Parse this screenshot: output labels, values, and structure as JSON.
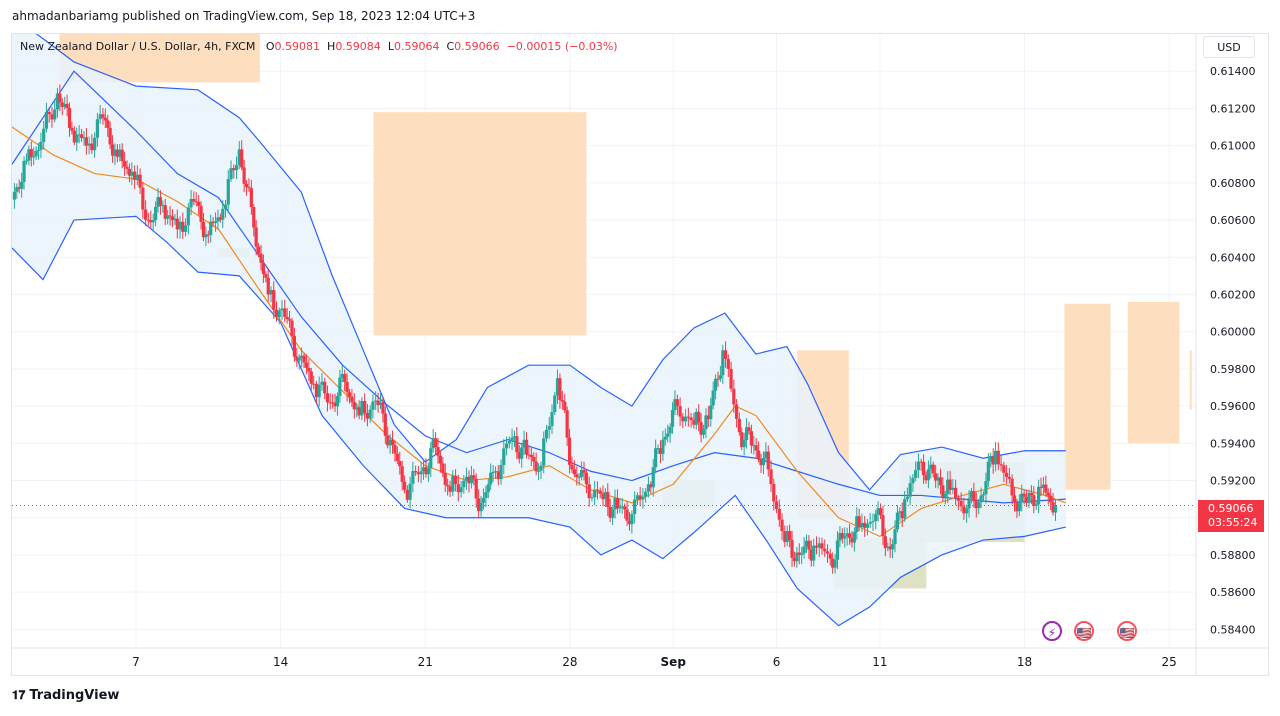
{
  "publisher_line": "ahmadanbariamg published on TradingView.com, Sep 18, 2023 12:04 UTC+3",
  "legend": {
    "symbol": "New Zealand Dollar / U.S. Dollar, 4h, FXCM",
    "open_label": "O",
    "open": "0.59081",
    "high_label": "H",
    "high": "0.59084",
    "low_label": "L",
    "low": "0.59064",
    "close_label": "C",
    "close": "0.59066",
    "change": "−0.00015 (−0.03%)"
  },
  "currency_button": "USD",
  "price_tag": {
    "price": "0.59066",
    "countdown": "03:55:24"
  },
  "footer_brand": "TradingView",
  "events": [
    {
      "name": "lightning-event-icon",
      "glyph": "⚡"
    },
    {
      "name": "us-flag-event-icon",
      "glyph": "🇺🇸"
    },
    {
      "name": "us-flag-event-icon",
      "glyph": "🇺🇸"
    }
  ],
  "colors": {
    "up": "#26a69a",
    "down": "#f23645",
    "band": "#2962ff",
    "band_fill": "#e9f2fb",
    "ma": "#f28a1e",
    "zone_supply": "#fdd9b5",
    "zone_demand": "#d9dcb9"
  },
  "chart_data": {
    "type": "candlestick",
    "symbol": "NZDUSD",
    "timeframe": "4h",
    "y_axis_ticks": [
      "0.61400",
      "0.61200",
      "0.61000",
      "0.60800",
      "0.60600",
      "0.60400",
      "0.60200",
      "0.60000",
      "0.59800",
      "0.59600",
      "0.59400",
      "0.59200",
      "0.59000",
      "0.58800",
      "0.58600",
      "0.58400"
    ],
    "ylim": [
      0.583,
      0.616
    ],
    "x_axis_ticks": [
      {
        "label": "7",
        "t": 6
      },
      {
        "label": "14",
        "t": 13
      },
      {
        "label": "21",
        "t": 20
      },
      {
        "label": "28",
        "t": 27
      },
      {
        "label": "Sep",
        "t": 32
      },
      {
        "label": "6",
        "t": 37
      },
      {
        "label": "11",
        "t": 42
      },
      {
        "label": "18",
        "t": 49
      },
      {
        "label": "25",
        "t": 56
      }
    ],
    "xlim": [
      0,
      57.3
    ],
    "last_price": 0.59066,
    "price_path": [
      [
        0,
        0.6071
      ],
      [
        0.7,
        0.6092
      ],
      [
        1.4,
        0.6102
      ],
      [
        2.2,
        0.6128
      ],
      [
        2.9,
        0.6108
      ],
      [
        3.6,
        0.61
      ],
      [
        4.4,
        0.6115
      ],
      [
        5.1,
        0.6094
      ],
      [
        5.8,
        0.6086
      ],
      [
        6.6,
        0.606
      ],
      [
        7.3,
        0.6068
      ],
      [
        8.0,
        0.6055
      ],
      [
        8.8,
        0.607
      ],
      [
        9.5,
        0.6052
      ],
      [
        10.2,
        0.6066
      ],
      [
        11.0,
        0.6098
      ],
      [
        11.7,
        0.6056
      ],
      [
        12.4,
        0.602
      ],
      [
        13.2,
        0.6008
      ],
      [
        13.9,
        0.5986
      ],
      [
        14.6,
        0.5972
      ],
      [
        15.4,
        0.5962
      ],
      [
        16.1,
        0.5973
      ],
      [
        16.8,
        0.5955
      ],
      [
        17.6,
        0.5963
      ],
      [
        18.3,
        0.5942
      ],
      [
        19.0,
        0.5915
      ],
      [
        19.8,
        0.5925
      ],
      [
        20.5,
        0.5938
      ],
      [
        21.2,
        0.5914
      ],
      [
        22.0,
        0.5922
      ],
      [
        22.7,
        0.5908
      ],
      [
        23.4,
        0.5925
      ],
      [
        24.2,
        0.5943
      ],
      [
        24.9,
        0.5934
      ],
      [
        25.6,
        0.5928
      ],
      [
        26.4,
        0.5975
      ],
      [
        27.1,
        0.5926
      ],
      [
        27.8,
        0.5918
      ],
      [
        28.6,
        0.591
      ],
      [
        29.3,
        0.5905
      ],
      [
        30.0,
        0.5902
      ],
      [
        30.8,
        0.5918
      ],
      [
        31.5,
        0.5942
      ],
      [
        32.2,
        0.596
      ],
      [
        33.0,
        0.595
      ],
      [
        33.7,
        0.5953
      ],
      [
        34.4,
        0.599
      ],
      [
        35.2,
        0.5946
      ],
      [
        35.9,
        0.5939
      ],
      [
        36.6,
        0.5926
      ],
      [
        37.4,
        0.5887
      ],
      [
        38.1,
        0.588
      ],
      [
        38.8,
        0.5885
      ],
      [
        39.6,
        0.5878
      ],
      [
        40.3,
        0.589
      ],
      [
        41.0,
        0.5895
      ],
      [
        41.8,
        0.5902
      ],
      [
        42.5,
        0.5883
      ],
      [
        43.2,
        0.591
      ],
      [
        44.0,
        0.593
      ],
      [
        44.7,
        0.592
      ],
      [
        45.4,
        0.5915
      ],
      [
        46.2,
        0.5905
      ],
      [
        46.9,
        0.5912
      ],
      [
        47.6,
        0.5936
      ],
      [
        48.4,
        0.5912
      ],
      [
        49.1,
        0.5908
      ],
      [
        49.8,
        0.5916
      ],
      [
        50.5,
        0.59066
      ]
    ],
    "bollinger": {
      "upper": [
        [
          0,
          0.617
        ],
        [
          3,
          0.6145
        ],
        [
          6,
          0.6132
        ],
        [
          9,
          0.613
        ],
        [
          11,
          0.6115
        ],
        [
          12,
          0.6102
        ],
        [
          14,
          0.6075
        ],
        [
          15.5,
          0.603
        ],
        [
          17,
          0.599
        ],
        [
          18.5,
          0.595
        ],
        [
          20,
          0.593
        ],
        [
          21.5,
          0.5942
        ],
        [
          23,
          0.597
        ],
        [
          25,
          0.5982
        ],
        [
          27,
          0.5982
        ],
        [
          28.5,
          0.597
        ],
        [
          30,
          0.596
        ],
        [
          31.5,
          0.5985
        ],
        [
          33,
          0.6002
        ],
        [
          34.5,
          0.601
        ],
        [
          36,
          0.5988
        ],
        [
          37.5,
          0.5992
        ],
        [
          38.5,
          0.5972
        ],
        [
          40,
          0.5935
        ],
        [
          41.5,
          0.5915
        ],
        [
          43,
          0.5934
        ],
        [
          45,
          0.5938
        ],
        [
          47,
          0.5932
        ],
        [
          49,
          0.5936
        ],
        [
          51,
          0.5936
        ]
      ],
      "middle": [
        [
          0,
          0.609
        ],
        [
          3,
          0.614
        ],
        [
          6,
          0.6108
        ],
        [
          8,
          0.6085
        ],
        [
          10,
          0.6072
        ],
        [
          12,
          0.604
        ],
        [
          14,
          0.6008
        ],
        [
          16,
          0.5982
        ],
        [
          18,
          0.5962
        ],
        [
          20,
          0.5944
        ],
        [
          22,
          0.5935
        ],
        [
          24,
          0.5942
        ],
        [
          26,
          0.5935
        ],
        [
          28,
          0.5925
        ],
        [
          30,
          0.592
        ],
        [
          32,
          0.5928
        ],
        [
          34,
          0.5935
        ],
        [
          36,
          0.5932
        ],
        [
          38,
          0.5925
        ],
        [
          40,
          0.5918
        ],
        [
          42,
          0.5912
        ],
        [
          44,
          0.5912
        ],
        [
          46,
          0.591
        ],
        [
          48,
          0.5908
        ],
        [
          51,
          0.591
        ]
      ],
      "lower": [
        [
          0,
          0.6045
        ],
        [
          1.5,
          0.6028
        ],
        [
          3,
          0.606
        ],
        [
          6,
          0.6062
        ],
        [
          7.5,
          0.6048
        ],
        [
          9,
          0.6032
        ],
        [
          11,
          0.603
        ],
        [
          13,
          0.6005
        ],
        [
          15,
          0.5955
        ],
        [
          17,
          0.5928
        ],
        [
          19,
          0.5905
        ],
        [
          21,
          0.59
        ],
        [
          23,
          0.59
        ],
        [
          25,
          0.59
        ],
        [
          27,
          0.5895
        ],
        [
          28.5,
          0.588
        ],
        [
          30,
          0.5888
        ],
        [
          31.5,
          0.5878
        ],
        [
          33,
          0.5892
        ],
        [
          35,
          0.5912
        ],
        [
          36.5,
          0.5888
        ],
        [
          38,
          0.5862
        ],
        [
          40,
          0.5842
        ],
        [
          41.5,
          0.5852
        ],
        [
          43,
          0.5868
        ],
        [
          45,
          0.588
        ],
        [
          47,
          0.5888
        ],
        [
          49,
          0.589
        ],
        [
          51,
          0.5895
        ]
      ]
    },
    "moving_average": [
      [
        0,
        0.611
      ],
      [
        2,
        0.6095
      ],
      [
        4,
        0.6085
      ],
      [
        6,
        0.6082
      ],
      [
        8,
        0.607
      ],
      [
        10,
        0.6055
      ],
      [
        12,
        0.6022
      ],
      [
        14,
        0.599
      ],
      [
        16,
        0.5968
      ],
      [
        18,
        0.5946
      ],
      [
        20,
        0.5928
      ],
      [
        22,
        0.592
      ],
      [
        24,
        0.5922
      ],
      [
        26,
        0.5928
      ],
      [
        28,
        0.5915
      ],
      [
        30,
        0.5908
      ],
      [
        32,
        0.5918
      ],
      [
        34,
        0.5945
      ],
      [
        35,
        0.596
      ],
      [
        36,
        0.5955
      ],
      [
        38,
        0.5925
      ],
      [
        40,
        0.59
      ],
      [
        42,
        0.589
      ],
      [
        44,
        0.5905
      ],
      [
        46,
        0.5912
      ],
      [
        48,
        0.5918
      ],
      [
        50,
        0.5912
      ],
      [
        51,
        0.5908
      ]
    ],
    "zones": [
      {
        "kind": "supply",
        "t0": 2.3,
        "t1": 12.0,
        "p0": 0.6134,
        "p1": 0.616
      },
      {
        "kind": "supply",
        "t0": 17.5,
        "t1": 27.8,
        "p0": 0.5998,
        "p1": 0.6118
      },
      {
        "kind": "supply",
        "t0": 38.0,
        "t1": 40.5,
        "p0": 0.59,
        "p1": 0.599
      },
      {
        "kind": "supply",
        "t0": 54.0,
        "t1": 56.5,
        "p0": 0.594,
        "p1": 0.6016
      },
      {
        "kind": "supply",
        "t0": 57.0,
        "t1": 58.5,
        "p0": 0.5958,
        "p1": 0.599
      },
      {
        "kind": "supply",
        "t0": 80.0,
        "t1": 83.5,
        "p0": 0.5915,
        "p1": 0.6015
      },
      {
        "kind": "demand",
        "t0": 10.0,
        "t1": 11.5,
        "p0": 0.604,
        "p1": 0.6045
      },
      {
        "kind": "demand",
        "t0": 31.5,
        "t1": 34.0,
        "p0": 0.5905,
        "p1": 0.592
      },
      {
        "kind": "demand",
        "t0": 43.0,
        "t1": 49.0,
        "p0": 0.5887,
        "p1": 0.593
      },
      {
        "kind": "demand",
        "t0": 62.5,
        "t1": 69.5,
        "p0": 0.5862,
        "p1": 0.5889
      }
    ]
  }
}
